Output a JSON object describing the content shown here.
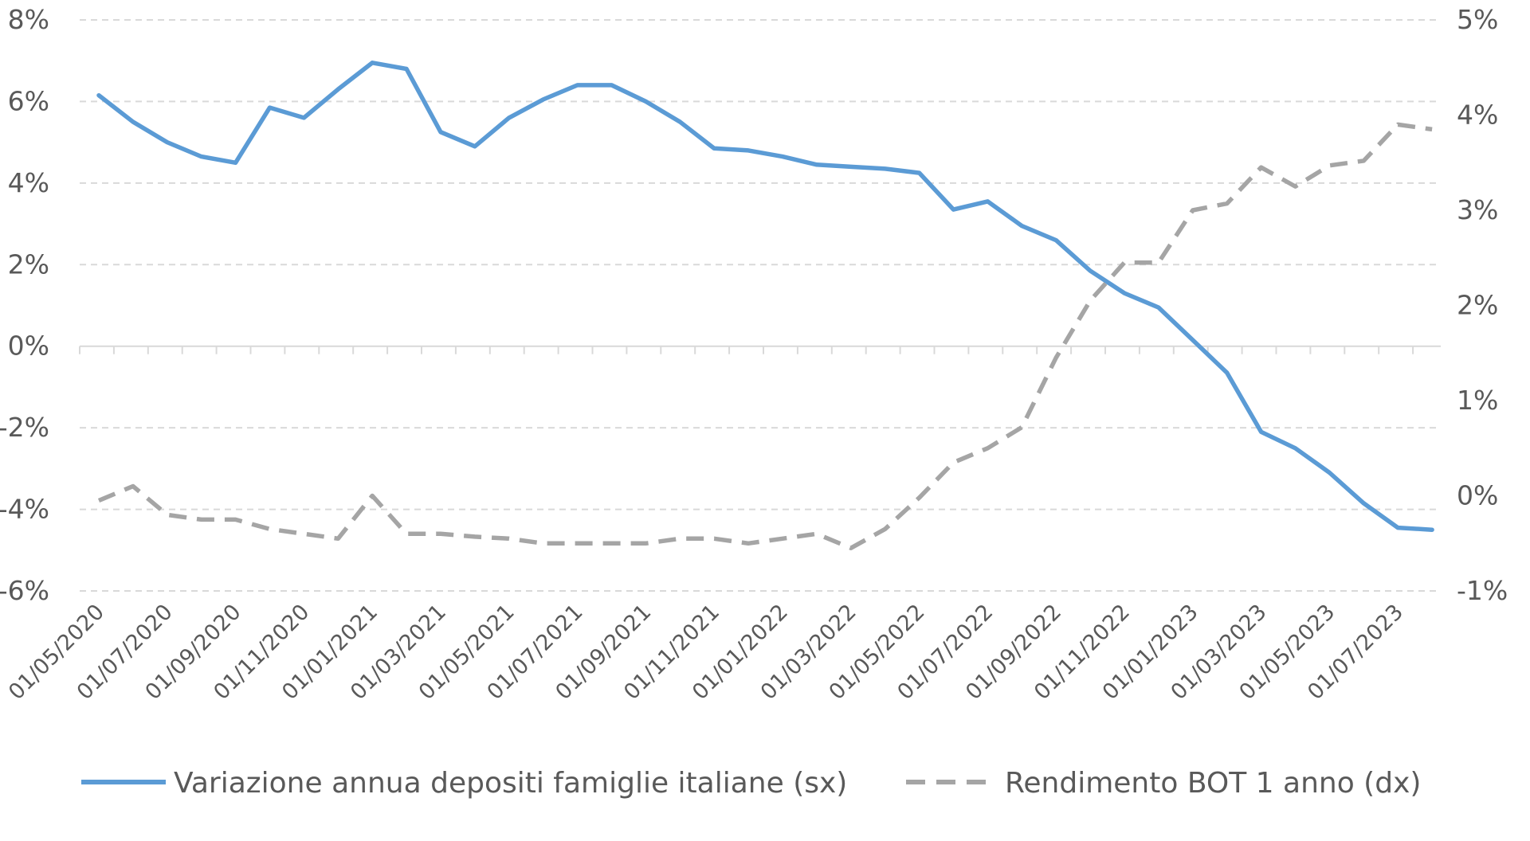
{
  "chart_data": {
    "type": "line",
    "title": "",
    "xlabel": "",
    "ylabel": "",
    "x": [
      "01/05/2020",
      "01/06/2020",
      "01/07/2020",
      "01/08/2020",
      "01/09/2020",
      "01/10/2020",
      "01/11/2020",
      "01/12/2020",
      "01/01/2021",
      "01/02/2021",
      "01/03/2021",
      "01/04/2021",
      "01/05/2021",
      "01/06/2021",
      "01/07/2021",
      "01/08/2021",
      "01/09/2021",
      "01/10/2021",
      "01/11/2021",
      "01/12/2021",
      "01/01/2022",
      "01/02/2022",
      "01/03/2022",
      "01/04/2022",
      "01/05/2022",
      "01/06/2022",
      "01/07/2022",
      "01/08/2022",
      "01/09/2022",
      "01/10/2022",
      "01/11/2022",
      "01/12/2022",
      "01/01/2023",
      "01/02/2023",
      "01/03/2023",
      "01/04/2023",
      "01/05/2023",
      "01/06/2023",
      "01/07/2023",
      "01/08/2023"
    ],
    "x_tick_labels": [
      "01/05/2020",
      "01/07/2020",
      "01/09/2020",
      "01/11/2020",
      "01/01/2021",
      "01/03/2021",
      "01/05/2021",
      "01/07/2021",
      "01/09/2021",
      "01/11/2021",
      "01/01/2022",
      "01/03/2022",
      "01/05/2022",
      "01/07/2022",
      "01/09/2022",
      "01/11/2022",
      "01/01/2023",
      "01/03/2023",
      "01/05/2023",
      "01/07/2023"
    ],
    "y_left": {
      "ylim": [
        -6,
        8
      ],
      "ticks": [
        -6,
        -4,
        -2,
        0,
        2,
        4,
        6,
        8
      ],
      "tick_labels": [
        "-6%",
        "-4%",
        "-2%",
        "0%",
        "2%",
        "4%",
        "6%",
        "8%"
      ]
    },
    "y_right": {
      "ylim": [
        -1,
        5
      ],
      "ticks": [
        -1,
        0,
        1,
        2,
        3,
        4,
        5
      ],
      "tick_labels": [
        "-1%",
        "0%",
        "1%",
        "2%",
        "3%",
        "4%",
        "5%"
      ]
    },
    "grid": true,
    "legend_position": "bottom",
    "series": [
      {
        "name": "Variazione annua depositi famiglie italiane (sx)",
        "axis": "left",
        "style": "solid",
        "color": "#5B9BD5",
        "values": [
          6.15,
          5.5,
          5.0,
          4.65,
          4.5,
          5.85,
          5.6,
          6.3,
          6.95,
          6.8,
          5.25,
          4.9,
          5.6,
          6.05,
          6.4,
          6.4,
          6.0,
          5.5,
          4.85,
          4.8,
          4.65,
          4.45,
          4.4,
          4.35,
          4.25,
          3.35,
          3.55,
          2.95,
          2.6,
          1.85,
          1.3,
          0.95,
          0.15,
          -0.65,
          -2.1,
          -2.5,
          -3.1,
          -3.85,
          -4.45,
          -4.5
        ]
      },
      {
        "name": "Rendimento BOT 1 anno (dx)",
        "axis": "right",
        "style": "dashed",
        "color": "#A5A5A5",
        "values": [
          -0.05,
          0.1,
          -0.2,
          -0.25,
          -0.25,
          -0.35,
          -0.4,
          -0.45,
          0.0,
          -0.4,
          -0.4,
          -0.43,
          -0.45,
          -0.5,
          -0.5,
          -0.5,
          -0.5,
          -0.45,
          -0.45,
          -0.5,
          -0.45,
          -0.4,
          -0.55,
          -0.35,
          -0.02,
          0.35,
          0.5,
          0.72,
          1.45,
          2.05,
          2.45,
          2.45,
          3.0,
          3.07,
          3.45,
          3.25,
          3.47,
          3.52,
          3.9,
          3.85
        ]
      }
    ]
  }
}
